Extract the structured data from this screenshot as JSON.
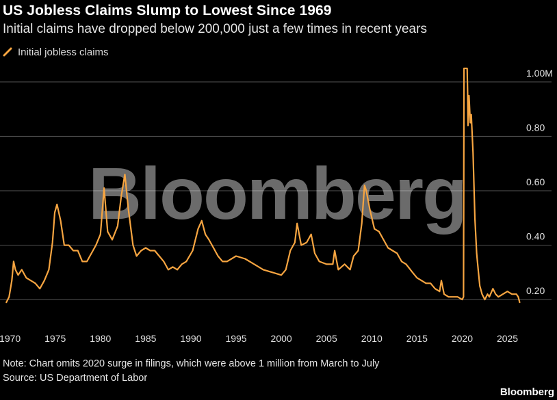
{
  "header": {
    "title": "US Jobless Claims Slump to Lowest Since 1969",
    "subtitle": "Initial claims have dropped below 200,000 just a few times in recent years"
  },
  "legend": {
    "label": "Initial jobless claims",
    "color": "#f7a541"
  },
  "watermark": "Bloomberg",
  "footer": {
    "note": "Note: Chart omits 2020 surge in filings, which were above 1 million from March to July",
    "source": "Source: US Department of Labor",
    "brand": "Bloomberg"
  },
  "chart_data": {
    "type": "line",
    "title": "US Jobless Claims Slump to Lowest Since 1969",
    "xlabel": "",
    "ylabel": "",
    "xlim": [
      1969.5,
      2026.7
    ],
    "ylim": [
      0.14,
      1.06
    ],
    "grid": true,
    "y_ticks": [
      {
        "value": 1.0,
        "label": "1.00M"
      },
      {
        "value": 0.8,
        "label": "0.80"
      },
      {
        "value": 0.6,
        "label": "0.60"
      },
      {
        "value": 0.4,
        "label": "0.40"
      },
      {
        "value": 0.2,
        "label": "0.20"
      }
    ],
    "x_ticks": [
      {
        "value": 1970,
        "label": "1970"
      },
      {
        "value": 1975,
        "label": "1975"
      },
      {
        "value": 1980,
        "label": "1980"
      },
      {
        "value": 1985,
        "label": "1985"
      },
      {
        "value": 1990,
        "label": "1990"
      },
      {
        "value": 1995,
        "label": "1995"
      },
      {
        "value": 2000,
        "label": "2000"
      },
      {
        "value": 2005,
        "label": "2005"
      },
      {
        "value": 2010,
        "label": "2010"
      },
      {
        "value": 2015,
        "label": "2015"
      },
      {
        "value": 2020,
        "label": "2020"
      },
      {
        "value": 2025,
        "label": "2025"
      }
    ],
    "series": [
      {
        "name": "Initial jobless claims",
        "color": "#f7a541",
        "x": [
          1969.6,
          1969.9,
          1970.2,
          1970.4,
          1970.6,
          1970.9,
          1971.3,
          1971.8,
          1972.3,
          1972.8,
          1973.3,
          1973.8,
          1974.3,
          1974.7,
          1974.95,
          1975.2,
          1975.6,
          1976.0,
          1976.5,
          1977.0,
          1977.5,
          1978.0,
          1978.5,
          1979.0,
          1979.5,
          1980.0,
          1980.4,
          1980.8,
          1981.3,
          1981.9,
          1982.3,
          1982.7,
          1983.1,
          1983.6,
          1984.0,
          1984.5,
          1985.0,
          1985.5,
          1986.0,
          1986.5,
          1987.0,
          1987.5,
          1988.0,
          1988.5,
          1989.0,
          1989.5,
          1990.2,
          1990.8,
          1991.2,
          1991.6,
          1992.0,
          1992.5,
          1993.0,
          1993.5,
          1994.0,
          1995.0,
          1996.0,
          1997.0,
          1998.0,
          1999.0,
          2000.0,
          2000.5,
          2001.0,
          2001.5,
          2001.75,
          2002.2,
          2002.8,
          2003.3,
          2003.7,
          2004.2,
          2005.0,
          2005.7,
          2005.9,
          2006.3,
          2007.0,
          2007.6,
          2008.0,
          2008.5,
          2008.9,
          2009.2,
          2009.4,
          2009.8,
          2010.3,
          2010.8,
          2011.3,
          2011.8,
          2012.3,
          2012.8,
          2013.3,
          2013.8,
          2014.5,
          2015.0,
          2015.5,
          2016.0,
          2016.5,
          2017.0,
          2017.5,
          2017.7,
          2018.0,
          2018.5,
          2019.0,
          2019.5,
          2020.0,
          2020.15,
          2020.2,
          2020.3,
          2020.4,
          2020.45,
          2020.55,
          2020.6,
          2020.65,
          2020.75,
          2020.9,
          2021.0,
          2021.2,
          2021.4,
          2021.6,
          2021.8,
          2021.95,
          2022.2,
          2022.5,
          2022.8,
          2023.0,
          2023.4,
          2023.7,
          2024.0,
          2024.5,
          2025.0,
          2025.5,
          2026.0,
          2026.2,
          2026.35
        ],
        "values": [
          0.19,
          0.21,
          0.27,
          0.34,
          0.31,
          0.29,
          0.31,
          0.28,
          0.27,
          0.26,
          0.24,
          0.27,
          0.31,
          0.41,
          0.52,
          0.55,
          0.49,
          0.4,
          0.4,
          0.38,
          0.38,
          0.34,
          0.34,
          0.37,
          0.4,
          0.44,
          0.61,
          0.45,
          0.42,
          0.47,
          0.58,
          0.66,
          0.53,
          0.4,
          0.36,
          0.38,
          0.39,
          0.38,
          0.38,
          0.36,
          0.34,
          0.31,
          0.32,
          0.31,
          0.33,
          0.34,
          0.38,
          0.46,
          0.49,
          0.44,
          0.42,
          0.39,
          0.36,
          0.34,
          0.34,
          0.36,
          0.35,
          0.33,
          0.31,
          0.3,
          0.29,
          0.31,
          0.38,
          0.41,
          0.48,
          0.4,
          0.41,
          0.44,
          0.37,
          0.34,
          0.33,
          0.33,
          0.38,
          0.31,
          0.33,
          0.31,
          0.36,
          0.38,
          0.48,
          0.62,
          0.6,
          0.53,
          0.46,
          0.45,
          0.42,
          0.39,
          0.38,
          0.37,
          0.34,
          0.33,
          0.3,
          0.28,
          0.27,
          0.26,
          0.26,
          0.24,
          0.23,
          0.27,
          0.22,
          0.21,
          0.21,
          0.21,
          0.2,
          0.21,
          1.05,
          1.05,
          1.05,
          1.05,
          1.05,
          0.96,
          0.84,
          0.95,
          0.85,
          0.88,
          0.74,
          0.5,
          0.37,
          0.3,
          0.25,
          0.22,
          0.2,
          0.22,
          0.21,
          0.24,
          0.22,
          0.21,
          0.22,
          0.23,
          0.22,
          0.22,
          0.21,
          0.19
        ]
      }
    ]
  }
}
